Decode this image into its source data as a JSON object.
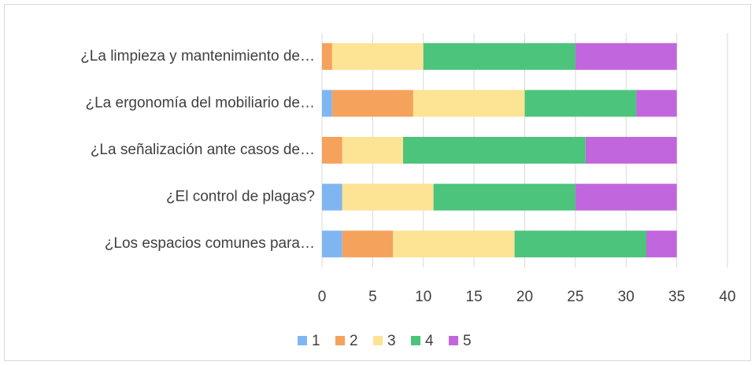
{
  "chart_data": {
    "type": "stacked_bar_horizontal",
    "categories": [
      "¿La limpieza y mantenimiento de…",
      "¿La ergonomía del mobiliario de…",
      "¿La señalización ante casos de…",
      "¿El control de plagas?",
      "¿Los espacios comunes para…"
    ],
    "series": [
      {
        "name": "1",
        "color": "#7fb6f2",
        "values": [
          0,
          1,
          0,
          2,
          2
        ]
      },
      {
        "name": "2",
        "color": "#f5a25d",
        "values": [
          1,
          8,
          2,
          0,
          5
        ]
      },
      {
        "name": "3",
        "color": "#fde394",
        "values": [
          9,
          11,
          6,
          9,
          12
        ]
      },
      {
        "name": "4",
        "color": "#4cc47c",
        "values": [
          15,
          11,
          18,
          14,
          13
        ]
      },
      {
        "name": "5",
        "color": "#c266dd",
        "values": [
          10,
          4,
          9,
          10,
          3
        ]
      }
    ],
    "xlim": [
      0,
      40
    ],
    "xticks": [
      0,
      5,
      10,
      15,
      20,
      25,
      30,
      35,
      40
    ],
    "grid": true,
    "legend": "bottom"
  }
}
